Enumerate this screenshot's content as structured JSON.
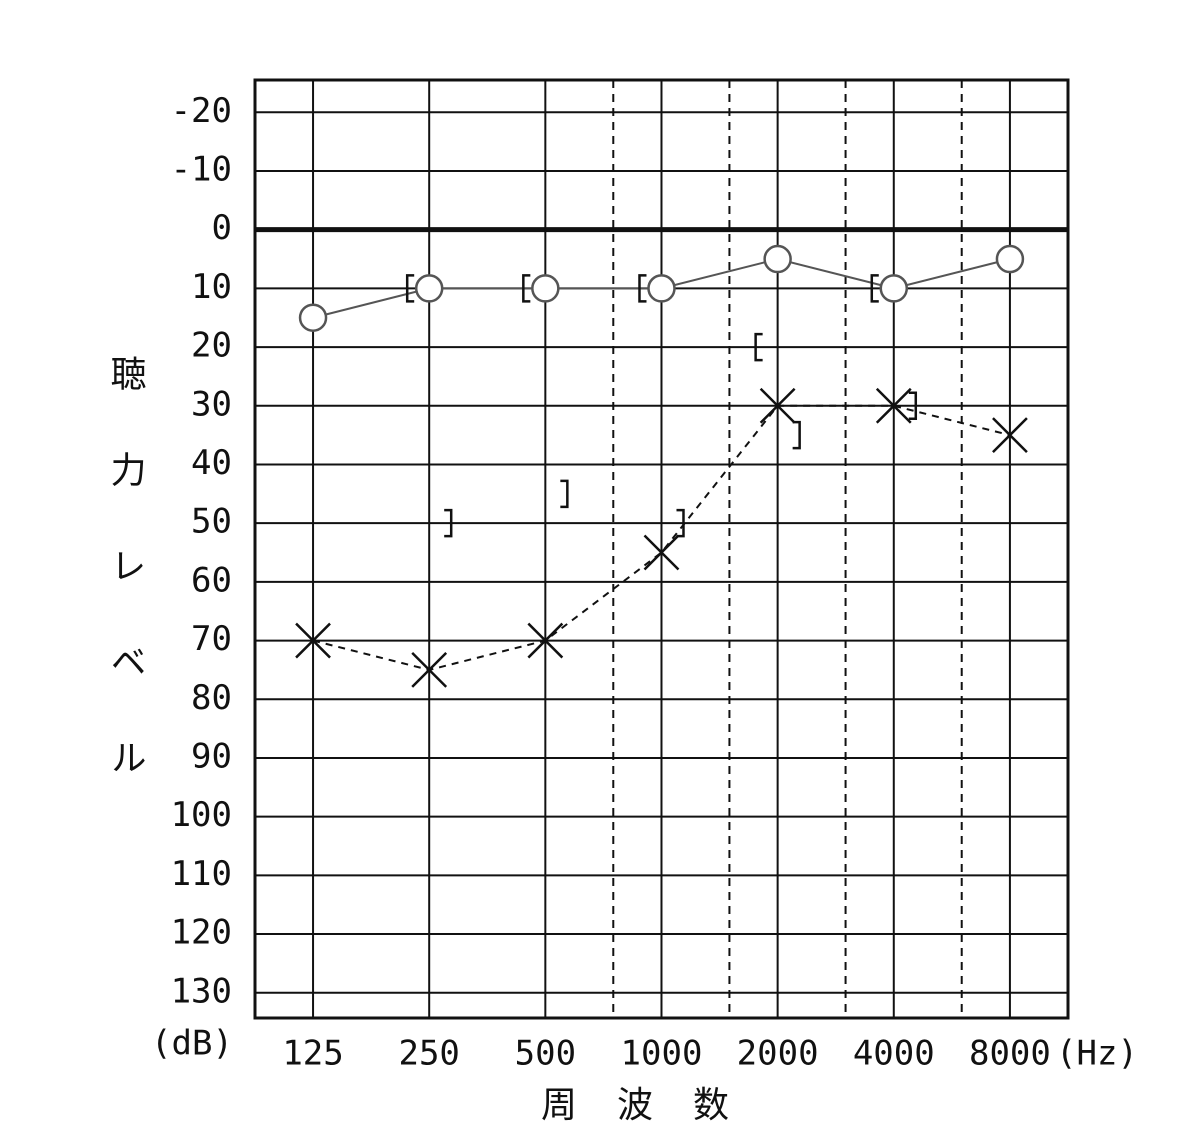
{
  "chart_data": {
    "type": "line",
    "x": [
      125,
      250,
      500,
      1000,
      2000,
      4000,
      8000
    ],
    "xlim": [
      88.4,
      11314
    ],
    "xticks": [
      125,
      250,
      500,
      1000,
      2000,
      4000,
      8000
    ],
    "xticks_minor": [
      750,
      1500,
      3000,
      6000
    ],
    "x_scale": "log",
    "ylim": [
      -25.5,
      134.3
    ],
    "y_inverted": true,
    "yticks": [
      -20,
      -10,
      0,
      10,
      20,
      30,
      40,
      50,
      60,
      70,
      80,
      90,
      100,
      110,
      120,
      130
    ],
    "grid": true,
    "y_label": "聴力レベル",
    "y_unit": "(dB)",
    "x_label": "周波数",
    "x_unit": "(Hz)",
    "series": [
      {
        "color": "#555555",
        "marker": "o",
        "linestyle": "solid",
        "values": [
          15,
          10,
          10,
          10,
          5,
          10,
          5
        ]
      },
      {
        "color": "#111111",
        "marker": "x",
        "linestyle": "dashed",
        "values": [
          70,
          75,
          70,
          55,
          30,
          30,
          35
        ]
      },
      {
        "color": "#111111",
        "marker": "[",
        "linestyle": "none",
        "values": [
          null,
          10,
          10,
          10,
          20,
          10,
          null
        ]
      },
      {
        "color": "#111111",
        "marker": "]",
        "linestyle": "none",
        "values": [
          null,
          50,
          45,
          50,
          35,
          30,
          null
        ]
      }
    ]
  }
}
